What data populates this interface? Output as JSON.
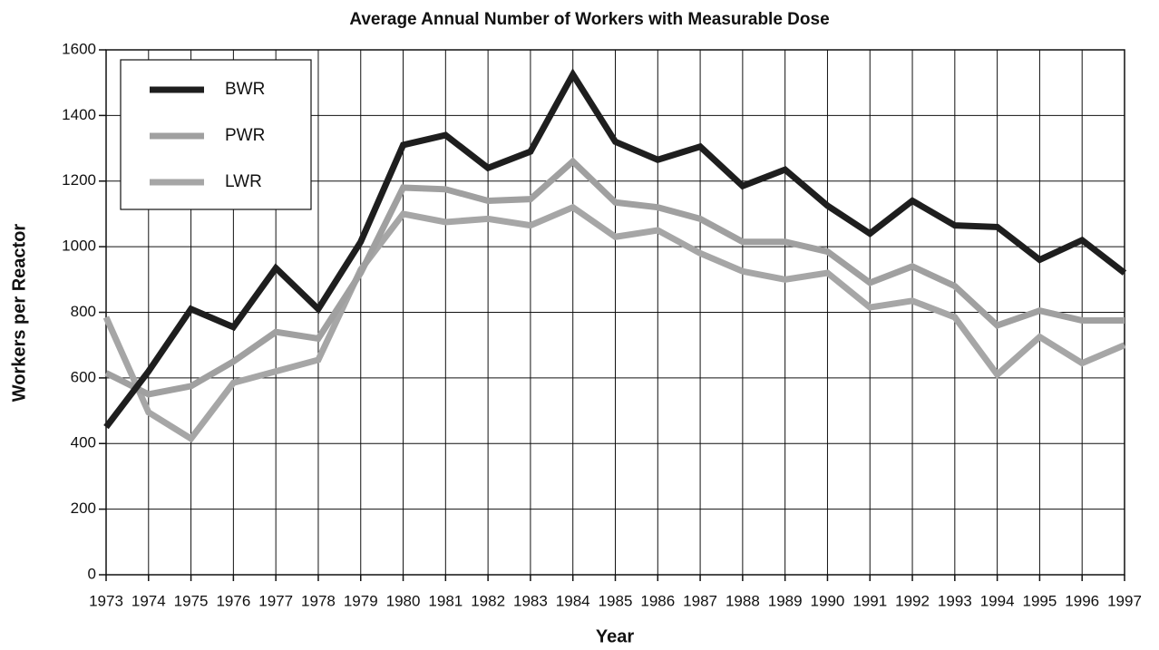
{
  "chart_data": {
    "type": "line",
    "title": "Average Annual Number of Workers with Measurable Dose",
    "x_label": "Year",
    "y_label": "Workers per Reactor",
    "x": [
      1973,
      1974,
      1975,
      1976,
      1977,
      1978,
      1979,
      1980,
      1981,
      1982,
      1983,
      1984,
      1985,
      1986,
      1987,
      1988,
      1989,
      1990,
      1991,
      1992,
      1993,
      1994,
      1995,
      1996,
      1997
    ],
    "xlim": [
      1973,
      1997
    ],
    "xticks": [
      1973,
      1974,
      1975,
      1976,
      1977,
      1978,
      1979,
      1980,
      1981,
      1982,
      1983,
      1984,
      1985,
      1986,
      1987,
      1988,
      1989,
      1990,
      1991,
      1992,
      1993,
      1994,
      1995,
      1996,
      1997
    ],
    "ylim": [
      0,
      1600
    ],
    "yticks": [
      0,
      200,
      400,
      600,
      800,
      1000,
      1200,
      1400,
      1600
    ],
    "grid": true,
    "legend": "upper left",
    "series": [
      {
        "name": "BWR",
        "color": "#1e1e1e",
        "values": [
          450,
          620,
          810,
          755,
          935,
          810,
          1015,
          1310,
          1340,
          1240,
          1290,
          1525,
          1320,
          1265,
          1305,
          1185,
          1235,
          1125,
          1040,
          1140,
          1065,
          1060,
          960,
          1020,
          920
        ]
      },
      {
        "name": "PWR",
        "color": "#a0a0a0",
        "values": [
          615,
          550,
          575,
          650,
          740,
          720,
          920,
          1180,
          1175,
          1140,
          1145,
          1260,
          1135,
          1120,
          1085,
          1015,
          1015,
          985,
          890,
          940,
          880,
          760,
          805,
          775,
          775
        ]
      },
      {
        "name": "LWR",
        "color": "#a6a6a6",
        "values": [
          785,
          495,
          415,
          585,
          620,
          655,
          930,
          1100,
          1075,
          1085,
          1065,
          1120,
          1030,
          1050,
          980,
          925,
          900,
          920,
          815,
          835,
          785,
          610,
          725,
          645,
          700
        ]
      }
    ]
  }
}
